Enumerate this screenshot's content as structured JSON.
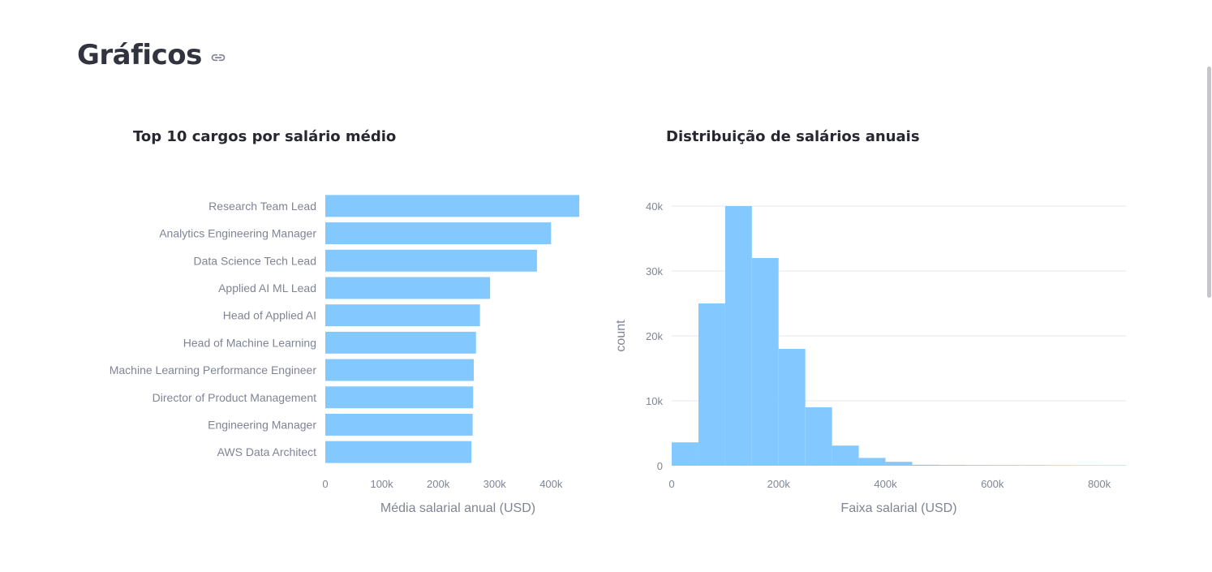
{
  "page": {
    "title": "Gráficos",
    "link_icon": "link-icon"
  },
  "colors": {
    "bar": "#83c9ff",
    "grid": "#e6e9ef",
    "tick_text": "#808495",
    "axis_title": "#808495",
    "title": "#262730"
  },
  "chart_data": [
    {
      "type": "bar",
      "orientation": "horizontal",
      "title": "Top 10 cargos por salário médio",
      "categories": [
        "Research Team Lead",
        "Analytics Engineering Manager",
        "Data Science Tech Lead",
        "Applied AI ML Lead",
        "Head of Applied AI",
        "Head of Machine Learning",
        "Machine Learning Performance Engineer",
        "Director of Product Management",
        "Engineering Manager",
        "AWS Data Architect"
      ],
      "values": [
        450000,
        400000,
        375000,
        292000,
        274000,
        267000,
        263000,
        262000,
        261000,
        259000
      ],
      "xlabel": "Média salarial anual (USD)",
      "ylabel": "",
      "xlim": [
        0,
        470000
      ],
      "xticks": [
        0,
        100000,
        200000,
        300000,
        400000
      ],
      "xtick_labels": [
        "0",
        "100k",
        "200k",
        "300k",
        "400k"
      ],
      "grid": false
    },
    {
      "type": "bar",
      "subtype": "histogram",
      "title": "Distribuição de salários anuais",
      "bins": [
        {
          "x0": 0,
          "x1": 50000,
          "count": 3600
        },
        {
          "x0": 50000,
          "x1": 100000,
          "count": 25000
        },
        {
          "x0": 100000,
          "x1": 150000,
          "count": 40000
        },
        {
          "x0": 150000,
          "x1": 200000,
          "count": 32000
        },
        {
          "x0": 200000,
          "x1": 250000,
          "count": 18000
        },
        {
          "x0": 250000,
          "x1": 300000,
          "count": 9000
        },
        {
          "x0": 300000,
          "x1": 350000,
          "count": 3100
        },
        {
          "x0": 350000,
          "x1": 400000,
          "count": 1200
        },
        {
          "x0": 400000,
          "x1": 450000,
          "count": 600
        },
        {
          "x0": 450000,
          "x1": 500000,
          "count": 150
        },
        {
          "x0": 500000,
          "x1": 550000,
          "count": 120
        },
        {
          "x0": 550000,
          "x1": 600000,
          "count": 100
        },
        {
          "x0": 600000,
          "x1": 650000,
          "count": 90
        },
        {
          "x0": 650000,
          "x1": 700000,
          "count": 80
        },
        {
          "x0": 700000,
          "x1": 750000,
          "count": 70
        },
        {
          "x0": 750000,
          "x1": 800000,
          "count": 60
        },
        {
          "x0": 800000,
          "x1": 850000,
          "count": 50
        }
      ],
      "xlabel": "Faixa salarial (USD)",
      "ylabel": "count",
      "xlim": [
        0,
        850000
      ],
      "ylim": [
        0,
        40000
      ],
      "xticks": [
        0,
        200000,
        400000,
        600000,
        800000
      ],
      "xtick_labels": [
        "0",
        "200k",
        "400k",
        "600k",
        "800k"
      ],
      "yticks": [
        0,
        10000,
        20000,
        30000,
        40000
      ],
      "ytick_labels": [
        "0",
        "10k",
        "20k",
        "30k",
        "40k"
      ],
      "grid": true
    }
  ]
}
